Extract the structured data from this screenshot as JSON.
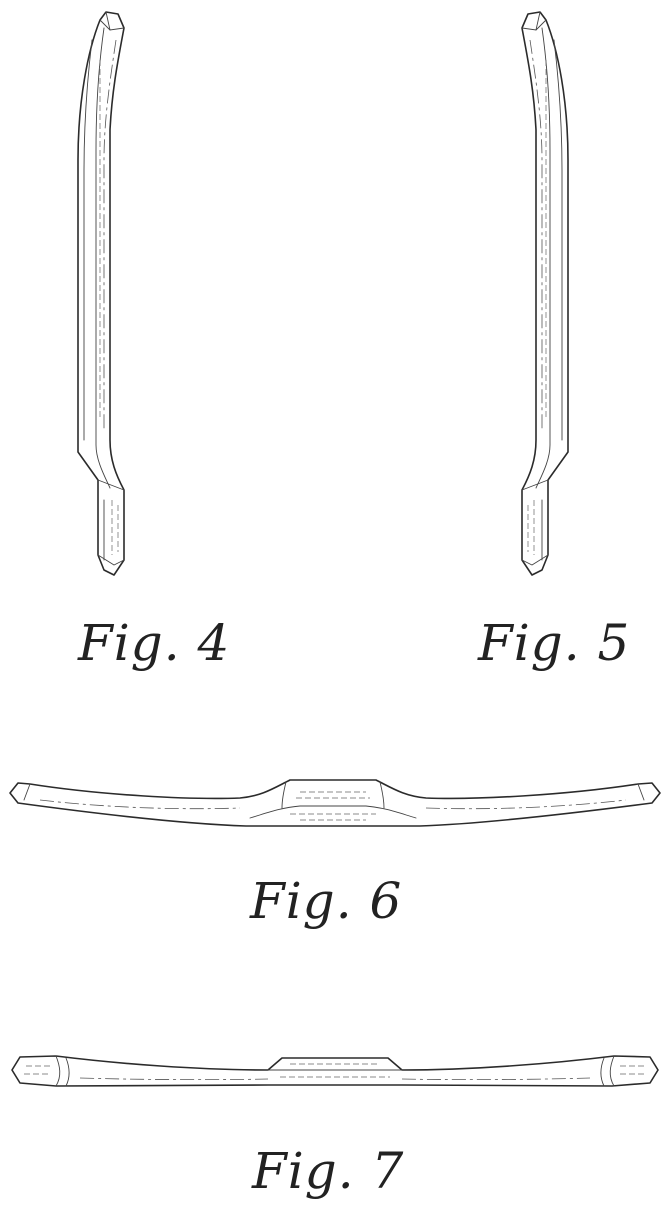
{
  "figures": [
    {
      "id": "fig4",
      "label": "Fig. 4"
    },
    {
      "id": "fig5",
      "label": "Fig. 5"
    },
    {
      "id": "fig6",
      "label": "Fig. 6"
    },
    {
      "id": "fig7",
      "label": "Fig. 7"
    }
  ]
}
